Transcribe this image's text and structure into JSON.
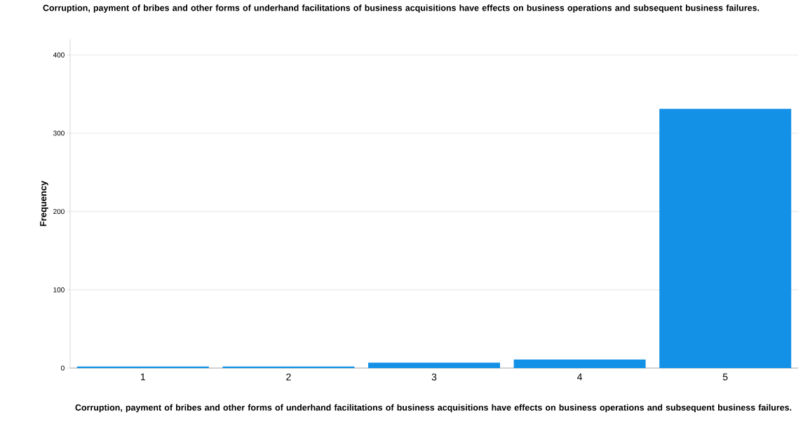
{
  "chart_data": {
    "type": "bar",
    "title": "Corruption, payment of bribes and other forms of underhand facilitations of business acquisitions have effects on business operations and subsequent business failures.",
    "xlabel": "Corruption, payment of bribes and other forms of underhand facilitations of business acquisitions have effects on business operations and subsequent business failures.",
    "ylabel": "Frequency",
    "categories": [
      "1",
      "2",
      "3",
      "4",
      "5"
    ],
    "values": [
      2,
      2,
      7,
      11,
      331
    ],
    "color": "#1391e6",
    "ylim": [
      0,
      420
    ],
    "yticks": [
      0,
      100,
      200,
      300,
      400
    ],
    "grid": "y"
  }
}
